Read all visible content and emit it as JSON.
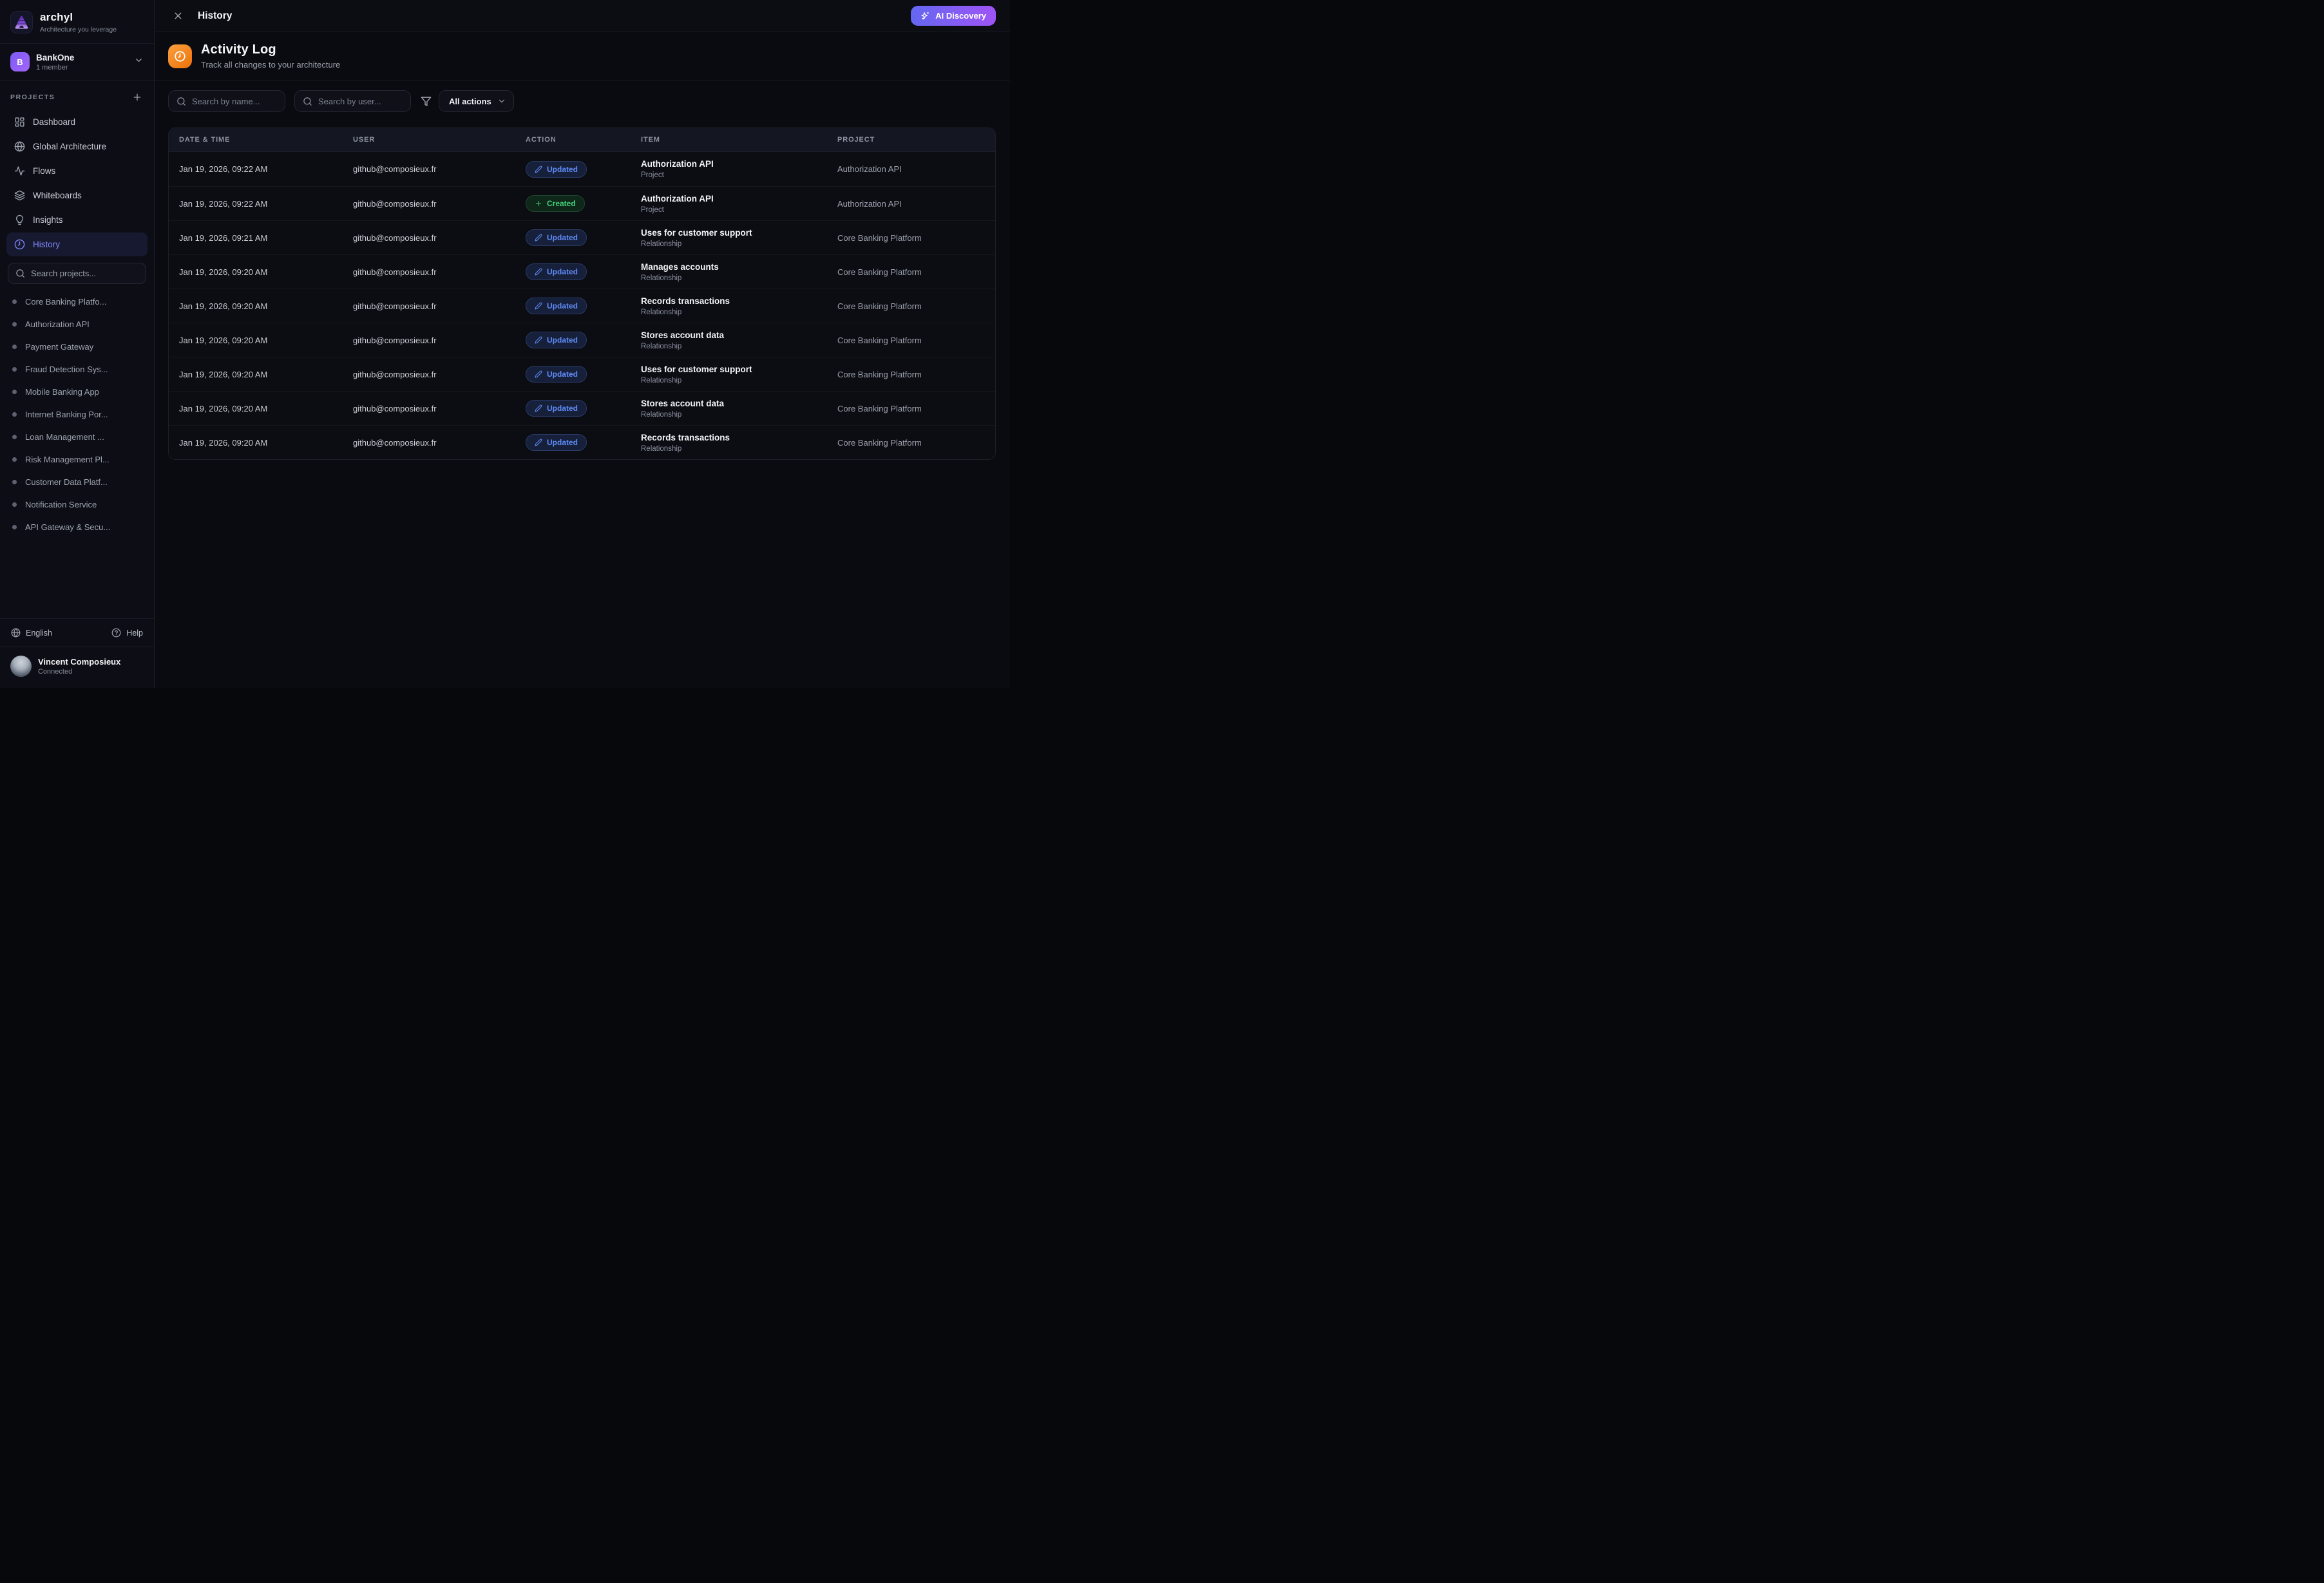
{
  "brand": {
    "name": "archyl",
    "tagline": "Architecture you leverage"
  },
  "workspace": {
    "initial": "B",
    "name": "BankOne",
    "members": "1 member"
  },
  "nav": {
    "section_label": "PROJECTS",
    "items": [
      {
        "label": "Dashboard",
        "icon": "dashboard",
        "active": false
      },
      {
        "label": "Global Architecture",
        "icon": "globe",
        "active": false
      },
      {
        "label": "Flows",
        "icon": "activity",
        "active": false
      },
      {
        "label": "Whiteboards",
        "icon": "layers",
        "active": false
      },
      {
        "label": "Insights",
        "icon": "lightbulb",
        "active": false
      },
      {
        "label": "History",
        "icon": "clock",
        "active": true
      }
    ]
  },
  "project_search": {
    "placeholder": "Search projects..."
  },
  "projects": [
    "Core Banking Platfo...",
    "Authorization API",
    "Payment Gateway",
    "Fraud Detection Sys...",
    "Mobile Banking App",
    "Internet Banking Por...",
    "Loan Management ...",
    "Risk Management Pl...",
    "Customer Data Platf...",
    "Notification Service",
    "API Gateway & Secu..."
  ],
  "footer": {
    "language": "English",
    "help": "Help",
    "user": {
      "name": "Vincent Composieux",
      "status": "Connected"
    }
  },
  "topbar": {
    "title": "History",
    "ai_button": "AI Discovery"
  },
  "page": {
    "title": "Activity Log",
    "subtitle": "Track all changes to your architecture"
  },
  "filters": {
    "name_placeholder": "Search by name...",
    "user_placeholder": "Search by user...",
    "actions_value": "All actions"
  },
  "table": {
    "columns": [
      "DATE & TIME",
      "USER",
      "ACTION",
      "ITEM",
      "PROJECT"
    ],
    "rows": [
      {
        "datetime": "Jan 19, 2026, 09:22 AM",
        "user": "github@composieux.fr",
        "action": "Updated",
        "action_type": "updated",
        "item": "Authorization API",
        "item_type": "Project",
        "project": "Authorization API"
      },
      {
        "datetime": "Jan 19, 2026, 09:22 AM",
        "user": "github@composieux.fr",
        "action": "Created",
        "action_type": "created",
        "item": "Authorization API",
        "item_type": "Project",
        "project": "Authorization API"
      },
      {
        "datetime": "Jan 19, 2026, 09:21 AM",
        "user": "github@composieux.fr",
        "action": "Updated",
        "action_type": "updated",
        "item": "Uses for customer support",
        "item_type": "Relationship",
        "project": "Core Banking Platform"
      },
      {
        "datetime": "Jan 19, 2026, 09:20 AM",
        "user": "github@composieux.fr",
        "action": "Updated",
        "action_type": "updated",
        "item": "Manages accounts",
        "item_type": "Relationship",
        "project": "Core Banking Platform"
      },
      {
        "datetime": "Jan 19, 2026, 09:20 AM",
        "user": "github@composieux.fr",
        "action": "Updated",
        "action_type": "updated",
        "item": "Records transactions",
        "item_type": "Relationship",
        "project": "Core Banking Platform"
      },
      {
        "datetime": "Jan 19, 2026, 09:20 AM",
        "user": "github@composieux.fr",
        "action": "Updated",
        "action_type": "updated",
        "item": "Stores account data",
        "item_type": "Relationship",
        "project": "Core Banking Platform"
      },
      {
        "datetime": "Jan 19, 2026, 09:20 AM",
        "user": "github@composieux.fr",
        "action": "Updated",
        "action_type": "updated",
        "item": "Uses for customer support",
        "item_type": "Relationship",
        "project": "Core Banking Platform"
      },
      {
        "datetime": "Jan 19, 2026, 09:20 AM",
        "user": "github@composieux.fr",
        "action": "Updated",
        "action_type": "updated",
        "item": "Stores account data",
        "item_type": "Relationship",
        "project": "Core Banking Platform"
      },
      {
        "datetime": "Jan 19, 2026, 09:20 AM",
        "user": "github@composieux.fr",
        "action": "Updated",
        "action_type": "updated",
        "item": "Records transactions",
        "item_type": "Relationship",
        "project": "Core Banking Platform"
      }
    ]
  },
  "colors": {
    "accent_indigo": "#7e85f6",
    "ai_gradient_start": "#6467f2",
    "ai_gradient_end": "#9f54f5",
    "activity_icon_orange": "#ee7108",
    "badge_updated_text": "#5f8bf7",
    "badge_created_text": "#44d07b",
    "workspace_avatar_purple": "#8b5cf6"
  }
}
